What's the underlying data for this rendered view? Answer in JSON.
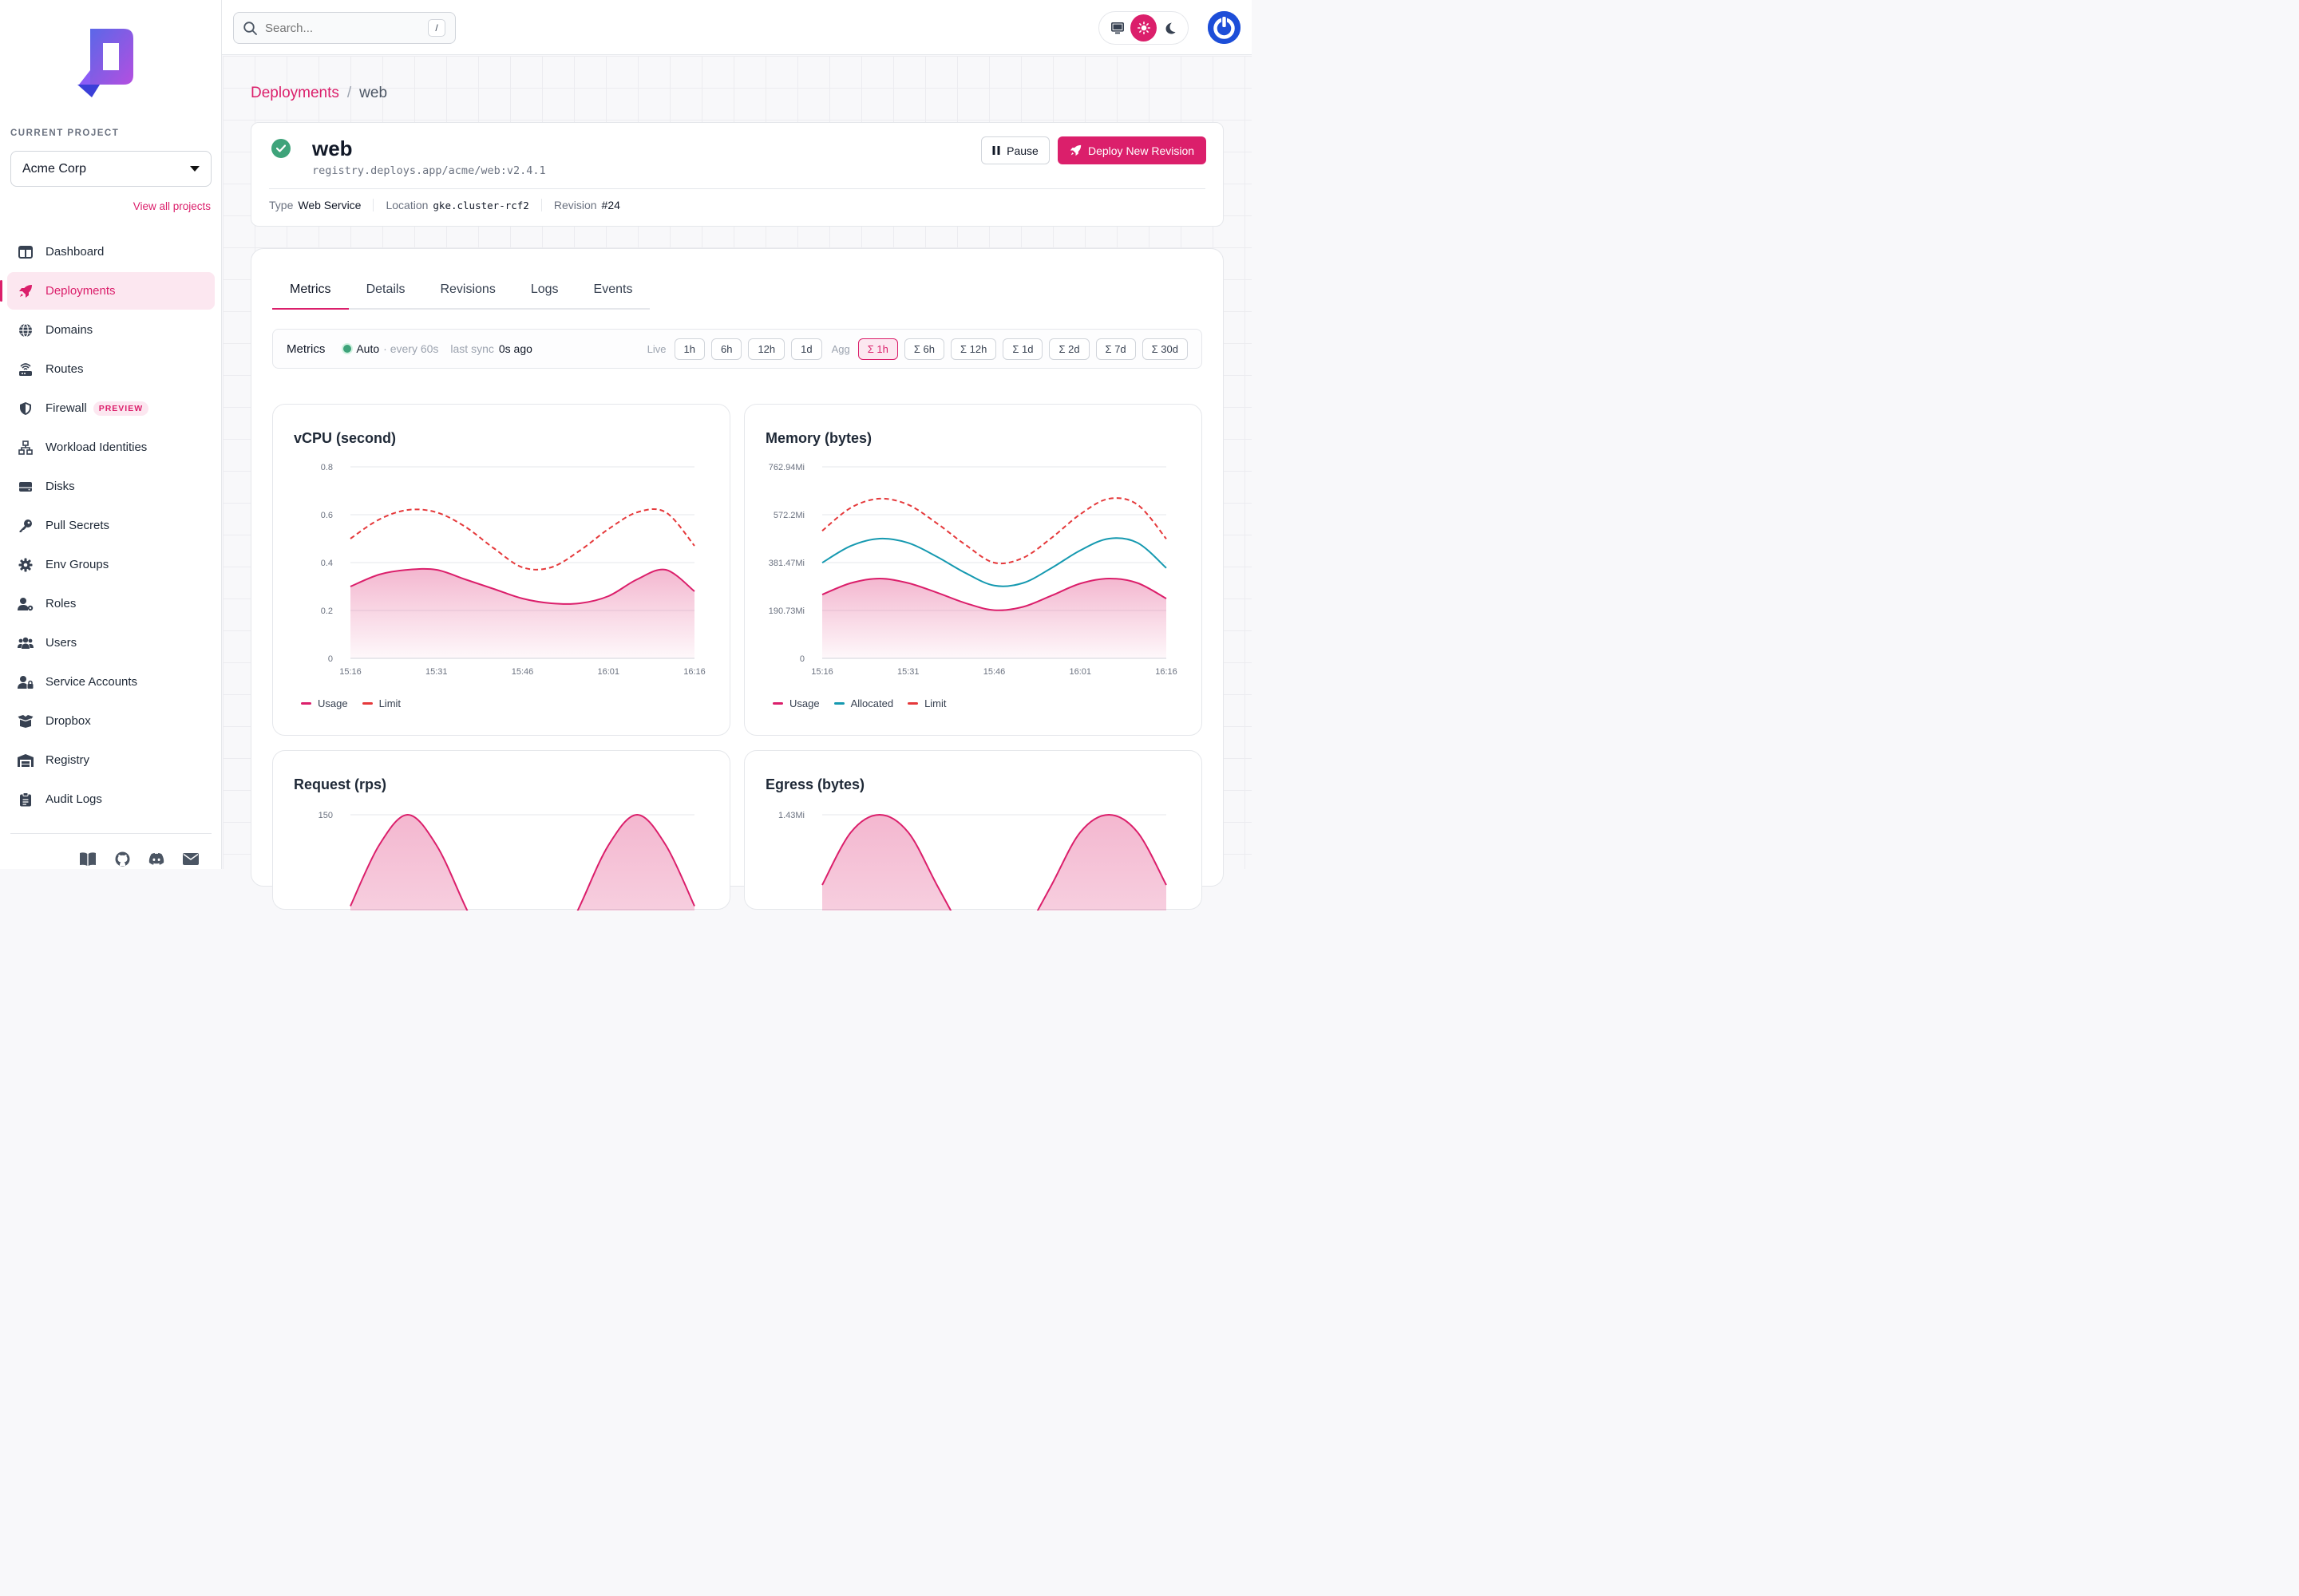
{
  "sidebar": {
    "project_label": "CURRENT PROJECT",
    "project_name": "Acme Corp",
    "view_all": "View all projects",
    "items": [
      {
        "label": "Dashboard",
        "icon": "dashboard-icon"
      },
      {
        "label": "Deployments",
        "icon": "rocket-icon",
        "active": true
      },
      {
        "label": "Domains",
        "icon": "globe-icon"
      },
      {
        "label": "Routes",
        "icon": "router-icon"
      },
      {
        "label": "Firewall",
        "icon": "shield-icon",
        "badge": "PREVIEW"
      },
      {
        "label": "Workload Identities",
        "icon": "network-icon"
      },
      {
        "label": "Disks",
        "icon": "disk-icon"
      },
      {
        "label": "Pull Secrets",
        "icon": "key-icon"
      },
      {
        "label": "Env Groups",
        "icon": "gear-icon"
      },
      {
        "label": "Roles",
        "icon": "user-gear-icon"
      },
      {
        "label": "Users",
        "icon": "users-icon"
      },
      {
        "label": "Service Accounts",
        "icon": "user-lock-icon"
      },
      {
        "label": "Dropbox",
        "icon": "box-icon"
      },
      {
        "label": "Registry",
        "icon": "warehouse-icon"
      },
      {
        "label": "Audit Logs",
        "icon": "clipboard-icon"
      }
    ],
    "footer_icons": [
      "book-icon",
      "github-icon",
      "discord-icon",
      "mail-icon"
    ]
  },
  "topbar": {
    "search_placeholder": "Search...",
    "search_shortcut": "/",
    "theme_options": [
      "desktop-icon",
      "sun-icon",
      "moon-icon"
    ],
    "theme_selected": "sun-icon"
  },
  "breadcrumb": {
    "parent": "Deployments",
    "sep": "/",
    "current": "web"
  },
  "deployment": {
    "name": "web",
    "image": "registry.deploys.app/acme/web:v2.4.1",
    "type_label": "Type",
    "type_value": "Web Service",
    "location_label": "Location",
    "location_value": "gke.cluster-rcf2",
    "revision_label": "Revision",
    "revision_value": "#24",
    "pause_label": "Pause",
    "deploy_label": "Deploy New Revision"
  },
  "tabs": [
    {
      "label": "Metrics",
      "active": true
    },
    {
      "label": "Details"
    },
    {
      "label": "Revisions"
    },
    {
      "label": "Logs"
    },
    {
      "label": "Events"
    }
  ],
  "metrics_bar": {
    "title": "Metrics",
    "auto": "Auto",
    "interval": "· every 60s",
    "sync_label": "last sync",
    "sync_value": "0s ago",
    "live_label": "Live",
    "live_ranges": [
      "1h",
      "6h",
      "12h",
      "1d"
    ],
    "agg_label": "Agg",
    "agg_ranges": [
      "Σ 1h",
      "Σ 6h",
      "Σ 12h",
      "Σ 1d",
      "Σ 2d",
      "Σ 7d",
      "Σ 30d"
    ],
    "agg_selected": "Σ 1h"
  },
  "colors": {
    "accent": "#db1f6b",
    "usage": "#db1f6b",
    "allocated": "#1599b0",
    "limit": "#e5393b"
  },
  "chart_data": [
    {
      "type": "area",
      "title": "vCPU (second)",
      "x": [
        "15:16",
        "15:21",
        "15:26",
        "15:31",
        "15:36",
        "15:41",
        "15:46",
        "15:51",
        "15:56",
        "16:01",
        "16:06",
        "16:11",
        "16:16"
      ],
      "yticks": [
        "0",
        "0.2",
        "0.4",
        "0.6",
        "0.8"
      ],
      "ylim": [
        0,
        0.8
      ],
      "xticks": [
        "15:16",
        "15:31",
        "15:46",
        "16:01",
        "16:16"
      ],
      "series": [
        {
          "name": "Usage",
          "values": [
            0.3,
            0.35,
            0.37,
            0.37,
            0.33,
            0.29,
            0.25,
            0.23,
            0.23,
            0.26,
            0.33,
            0.37,
            0.28
          ],
          "style": "area"
        },
        {
          "name": "Limit",
          "values": [
            0.5,
            0.58,
            0.62,
            0.61,
            0.55,
            0.46,
            0.38,
            0.38,
            0.45,
            0.54,
            0.61,
            0.61,
            0.47
          ],
          "style": "dashed"
        }
      ]
    },
    {
      "type": "area",
      "title": "Memory (bytes)",
      "x": [
        "15:16",
        "15:21",
        "15:26",
        "15:31",
        "15:36",
        "15:41",
        "15:46",
        "15:51",
        "15:56",
        "16:01",
        "16:06",
        "16:11",
        "16:16"
      ],
      "yticks": [
        "0",
        "190.73Mi",
        "381.47Mi",
        "572.2Mi",
        "762.94Mi"
      ],
      "ylim": [
        0,
        762.94
      ],
      "xticks": [
        "15:16",
        "15:31",
        "15:46",
        "16:01",
        "16:16"
      ],
      "series": [
        {
          "name": "Usage",
          "values": [
            254,
            300,
            318,
            300,
            262,
            220,
            192,
            205,
            250,
            298,
            318,
            300,
            238
          ],
          "style": "area"
        },
        {
          "name": "Allocated",
          "values": [
            381,
            448,
            477,
            460,
            405,
            340,
            290,
            300,
            360,
            430,
            477,
            460,
            360
          ],
          "style": "line"
        },
        {
          "name": "Limit",
          "values": [
            508,
            600,
            636,
            612,
            538,
            452,
            381,
            400,
            480,
            574,
            636,
            612,
            476
          ],
          "style": "dashed"
        }
      ]
    },
    {
      "type": "area",
      "title": "Request (rps)",
      "yticks": [
        "150"
      ],
      "series": [
        {
          "name": "Usage",
          "values": [
            90,
            130,
            150,
            130,
            90,
            50,
            10,
            50,
            90,
            130,
            150,
            130,
            90
          ],
          "style": "area"
        }
      ]
    },
    {
      "type": "area",
      "title": "Egress (bytes)",
      "yticks": [
        "1.43Mi"
      ],
      "series": [
        {
          "name": "Usage",
          "values": [
            0.9,
            1.2,
            1.3,
            1.2,
            0.9,
            0.6,
            0.3,
            0.6,
            0.9,
            1.2,
            1.3,
            1.2,
            0.9
          ],
          "style": "area"
        }
      ]
    }
  ]
}
